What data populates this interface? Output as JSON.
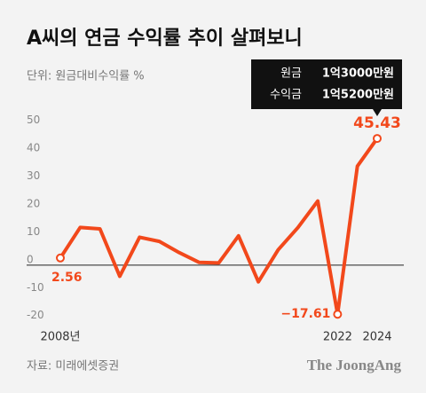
{
  "chart_data": {
    "type": "line",
    "title": "A씨의 연금 수익률 추이 살펴보니",
    "subtitle": "단위: 원금대비수익률 %",
    "callout": [
      {
        "label": "원금",
        "value": "1억3000만원"
      },
      {
        "label": "수익금",
        "value": "1억5200만원"
      }
    ],
    "categories": [
      "2008년",
      null,
      null,
      null,
      null,
      null,
      null,
      null,
      null,
      null,
      null,
      null,
      null,
      null,
      "2022",
      null,
      "2024"
    ],
    "series": [
      {
        "color": "#f2481b",
        "values": [
          2.56,
          13.5,
          13,
          -4,
          10,
          8.5,
          4.5,
          1,
          0.8,
          10.5,
          -6,
          5.5,
          13.5,
          23,
          -17.61,
          35.5,
          45.43
        ],
        "value_labels": [
          "2.56",
          null,
          null,
          null,
          null,
          null,
          null,
          null,
          null,
          null,
          null,
          null,
          null,
          null,
          "−17.61",
          null,
          "45.43"
        ]
      }
    ],
    "ylim": [
      -22,
      55
    ],
    "yticks": [
      -20,
      -10,
      0,
      10,
      20,
      30,
      40,
      50
    ],
    "source": "자료: 미래에셋증권",
    "brand": "The JoongAng"
  }
}
